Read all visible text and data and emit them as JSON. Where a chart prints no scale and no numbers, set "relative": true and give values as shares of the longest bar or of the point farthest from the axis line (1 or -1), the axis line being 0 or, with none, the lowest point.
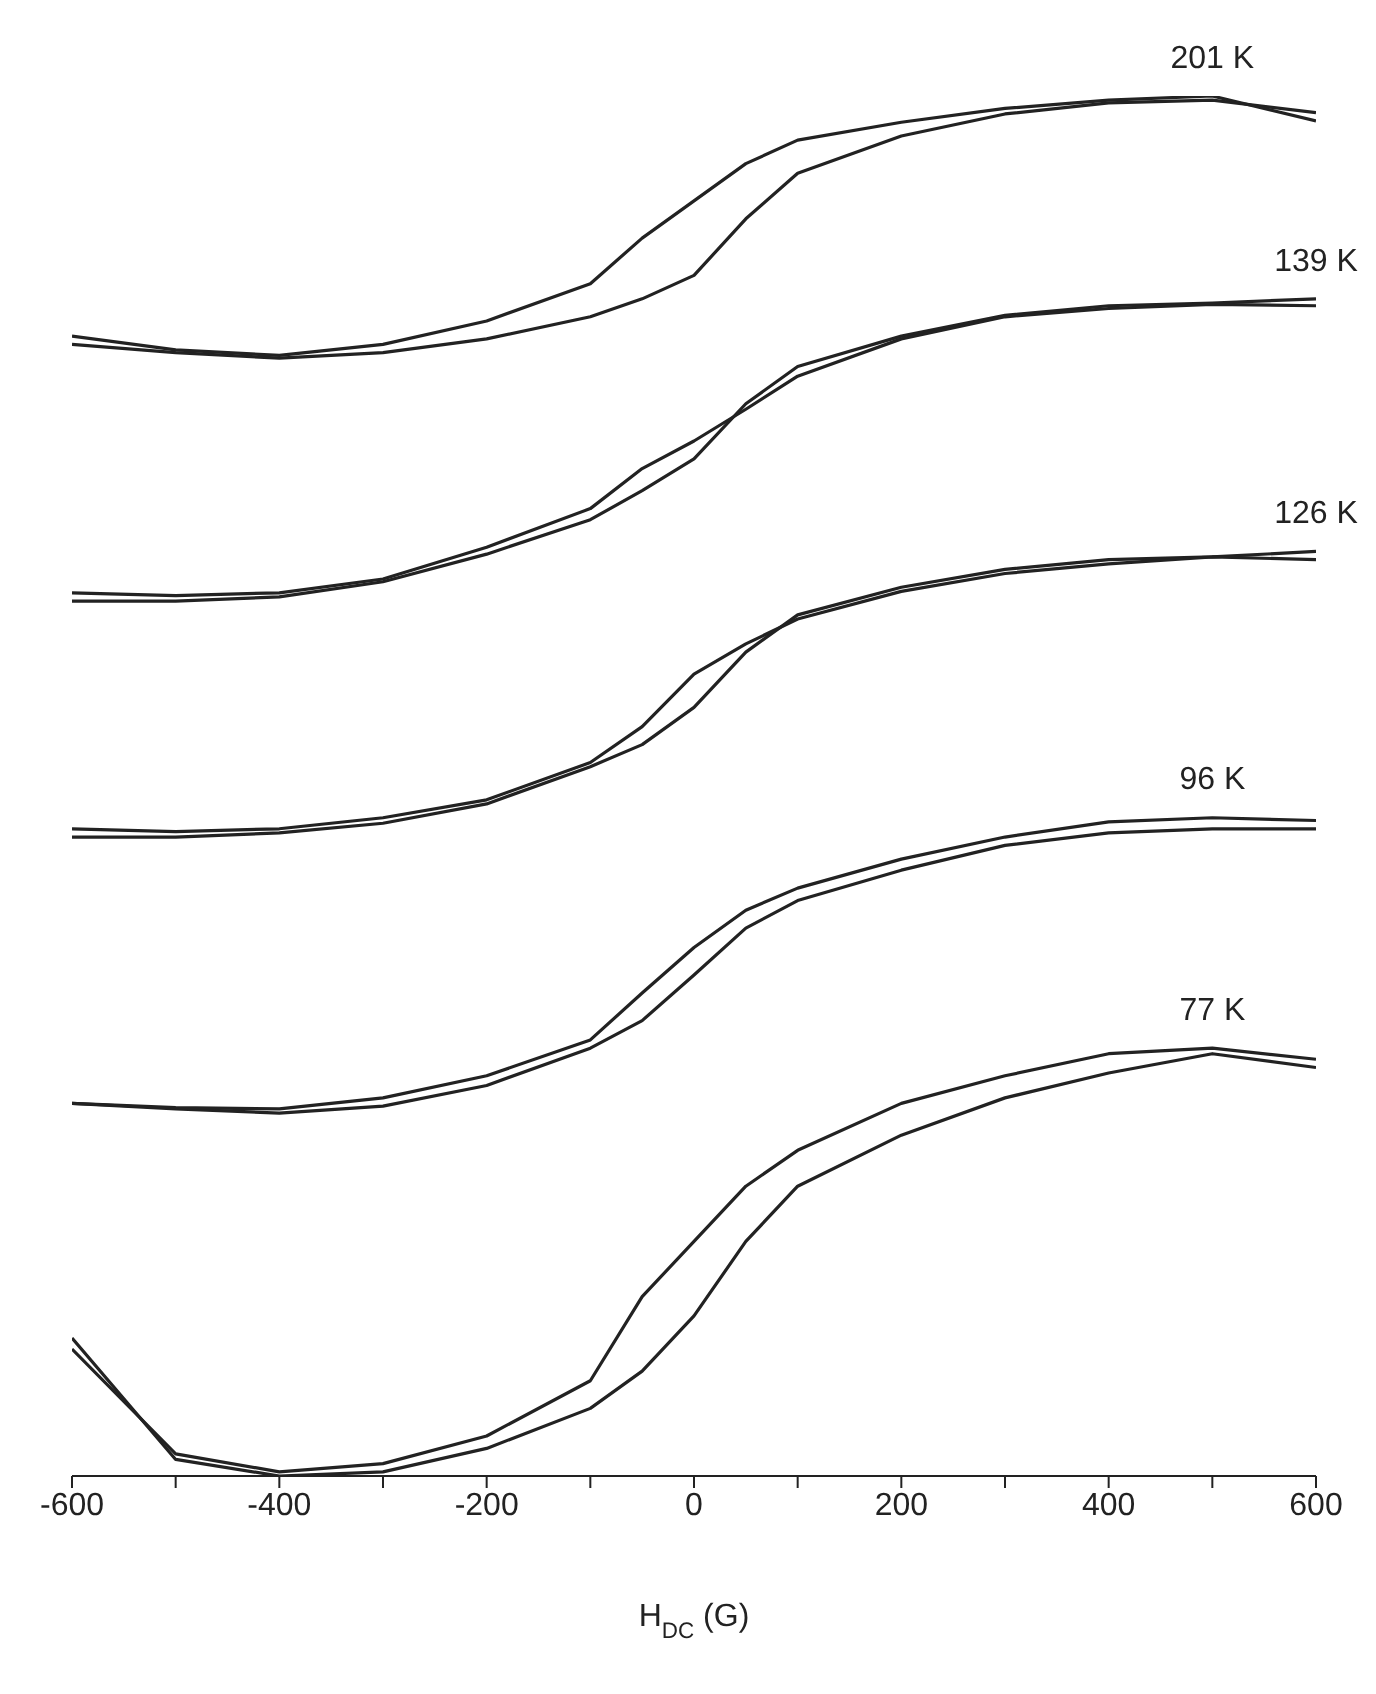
{
  "chart_data": {
    "type": "line",
    "relative": true,
    "xlabel": "H$_{DC}$ (G)",
    "xlim": [
      -600,
      600
    ],
    "xticks": [
      -600,
      {
        "value": -500,
        "label": null
      },
      -400,
      {
        "value": -300,
        "label": null
      },
      -200,
      {
        "value": -100,
        "label": null
      },
      0,
      {
        "value": 100,
        "label": null
      },
      200,
      {
        "value": 300,
        "label": null
      },
      400,
      {
        "value": 500,
        "label": null
      },
      600
    ],
    "grid": false,
    "legend": false,
    "marker": "none",
    "line_style": "solid",
    "series": [
      {
        "name": "201 K",
        "color": "#222222",
        "x": [
          -600,
          -500,
          -400,
          -300,
          -200,
          -100,
          -50,
          0,
          50,
          100,
          200,
          300,
          400,
          500,
          600
        ],
        "values": [
          0.82,
          0.814,
          0.81,
          0.814,
          0.824,
          0.84,
          0.853,
          0.87,
          0.911,
          0.944,
          0.971,
          0.987,
          0.995,
          0.997,
          0.988
        ]
      },
      {
        "color": "#222222",
        "x": [
          -600,
          -500,
          -400,
          -300,
          -200,
          -100,
          -50,
          0,
          50,
          100,
          200,
          300,
          400,
          500,
          600
        ],
        "values": [
          0.826,
          0.816,
          0.812,
          0.82,
          0.837,
          0.864,
          0.897,
          0.924,
          0.951,
          0.968,
          0.981,
          0.991,
          0.997,
          1,
          0.982
        ]
      },
      {
        "name": "139 K",
        "color": "#222222",
        "x": [
          -600,
          -500,
          -400,
          -300,
          -200,
          -100,
          -50,
          0,
          50,
          100,
          200,
          300,
          400,
          500,
          600
        ],
        "values": [
          0.634,
          0.634,
          0.637,
          0.648,
          0.668,
          0.693,
          0.714,
          0.737,
          0.777,
          0.804,
          0.826,
          0.841,
          0.848,
          0.85,
          0.853
        ]
      },
      {
        "color": "#222222",
        "x": [
          -600,
          -500,
          -400,
          -300,
          -200,
          -100,
          -50,
          0,
          50,
          100,
          200,
          300,
          400,
          500,
          600
        ],
        "values": [
          0.64,
          0.638,
          0.64,
          0.65,
          0.673,
          0.701,
          0.73,
          0.75,
          0.773,
          0.797,
          0.824,
          0.84,
          0.846,
          0.849,
          0.848
        ]
      },
      {
        "name": "126 K",
        "color": "#222222",
        "x": [
          -600,
          -500,
          -400,
          -300,
          -200,
          -100,
          -50,
          0,
          50,
          100,
          200,
          300,
          400,
          500,
          600
        ],
        "values": [
          0.463,
          0.463,
          0.466,
          0.473,
          0.487,
          0.514,
          0.53,
          0.557,
          0.597,
          0.624,
          0.644,
          0.657,
          0.664,
          0.666,
          0.67
        ]
      },
      {
        "color": "#222222",
        "x": [
          -600,
          -500,
          -400,
          -300,
          -200,
          -100,
          -50,
          0,
          50,
          100,
          200,
          300,
          400,
          500,
          600
        ],
        "values": [
          0.469,
          0.467,
          0.469,
          0.477,
          0.49,
          0.517,
          0.543,
          0.581,
          0.603,
          0.621,
          0.641,
          0.654,
          0.661,
          0.666,
          0.664
        ]
      },
      {
        "name": "96 K",
        "color": "#222222",
        "x": [
          -600,
          -500,
          -400,
          -300,
          -200,
          -100,
          -50,
          0,
          50,
          100,
          200,
          300,
          400,
          500,
          600
        ],
        "values": [
          0.27,
          0.266,
          0.263,
          0.268,
          0.283,
          0.31,
          0.33,
          0.363,
          0.397,
          0.417,
          0.439,
          0.457,
          0.466,
          0.469,
          0.469
        ]
      },
      {
        "color": "#222222",
        "x": [
          -600,
          -500,
          -400,
          -300,
          -200,
          -100,
          -50,
          0,
          50,
          100,
          200,
          300,
          400,
          500,
          600
        ],
        "values": [
          0.27,
          0.267,
          0.266,
          0.274,
          0.29,
          0.316,
          0.35,
          0.383,
          0.41,
          0.426,
          0.447,
          0.463,
          0.474,
          0.477,
          0.475
        ]
      },
      {
        "name": "77 K",
        "color": "#222222",
        "x": [
          -600,
          -500,
          -400,
          -300,
          -200,
          -100,
          -50,
          0,
          50,
          100,
          200,
          300,
          400,
          500,
          600
        ],
        "values": [
          0.1,
          0.012,
          0,
          0.003,
          0.02,
          0.049,
          0.076,
          0.116,
          0.17,
          0.21,
          0.247,
          0.274,
          0.292,
          0.306,
          0.296
        ]
      },
      {
        "color": "#222222",
        "x": [
          -600,
          -500,
          -400,
          -300,
          -200,
          -100,
          -50,
          0,
          50,
          100,
          200,
          300,
          400,
          500,
          600
        ],
        "values": [
          0.092,
          0.016,
          0.003,
          0.009,
          0.029,
          0.069,
          0.13,
          0.17,
          0.21,
          0.236,
          0.27,
          0.29,
          0.306,
          0.31,
          0.302
        ]
      }
    ]
  }
}
